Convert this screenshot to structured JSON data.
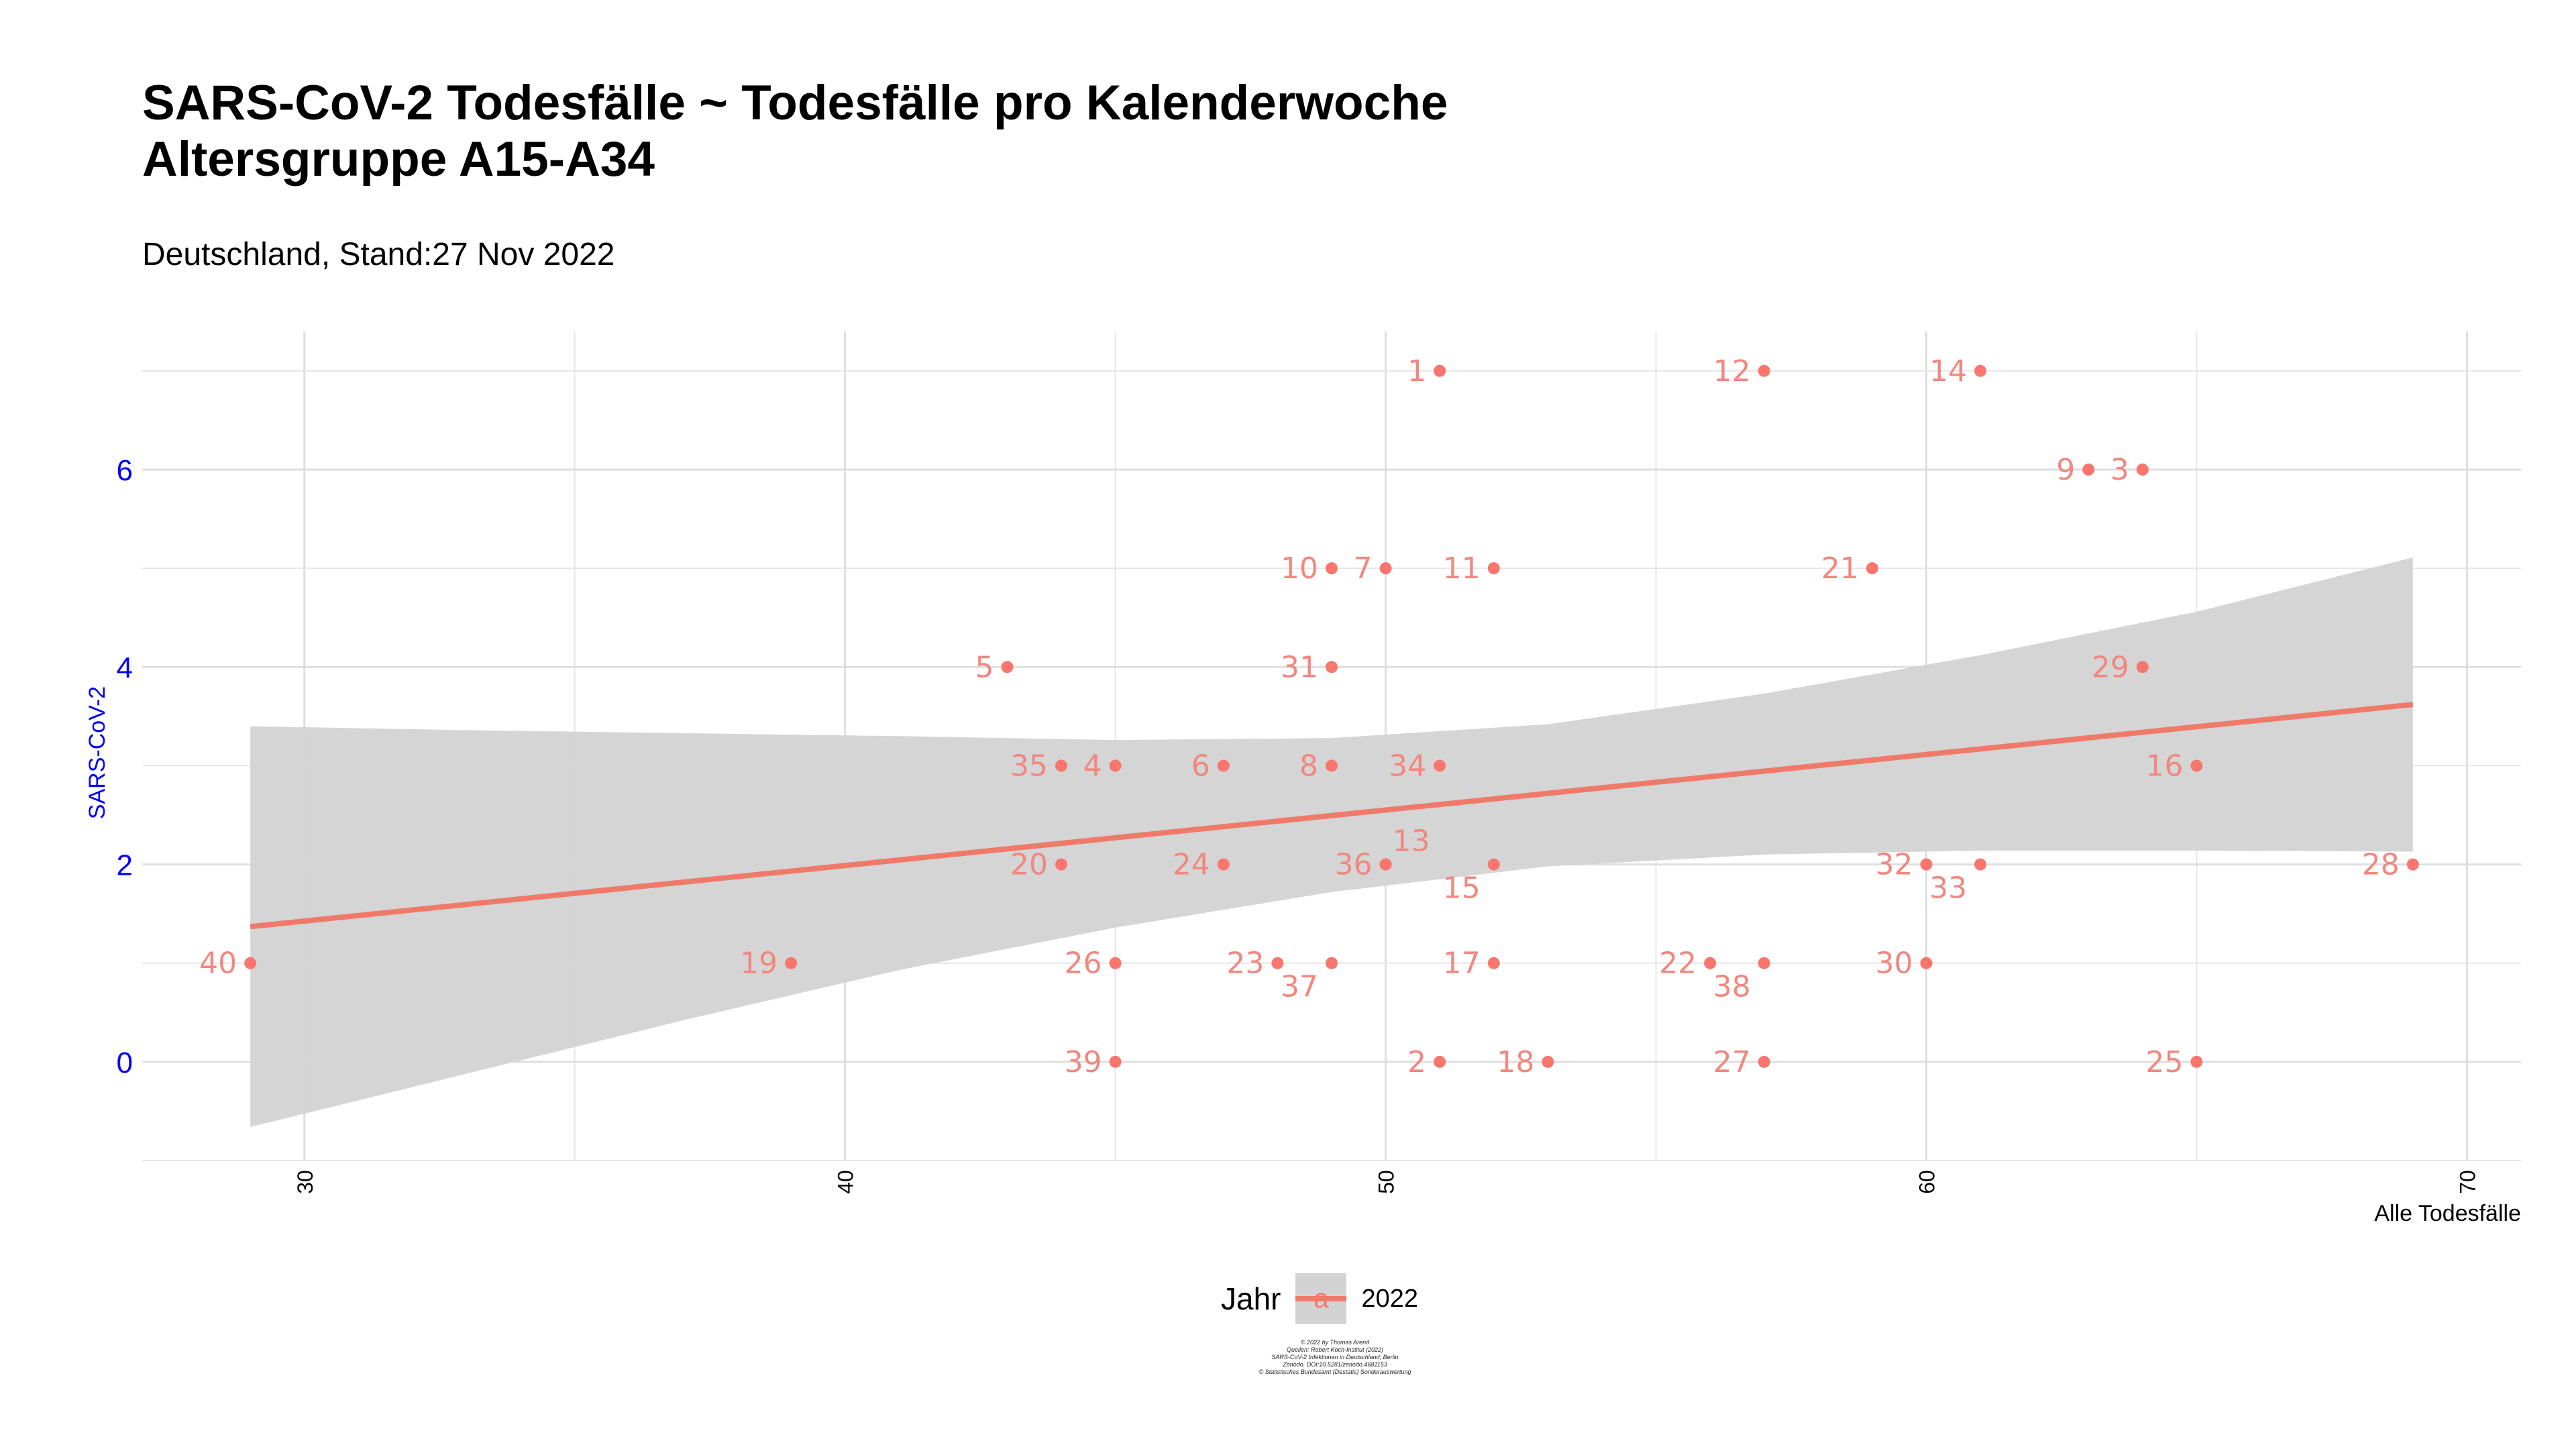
{
  "header": {
    "title_line1": "SARS-CoV-2 Todesfälle ~ Todesfälle pro Kalenderwoche",
    "title_line2": "Altersgruppe A15-A34",
    "subtitle": "Deutschland, Stand:27 Nov 2022"
  },
  "legend": {
    "title": "Jahr",
    "key_letter": "a",
    "label": "2022"
  },
  "caption": {
    "lines": [
      "© 2022 by Thomas Arend",
      "Quellen: Robert Koch-Institut (2022)",
      "SARS-CoV-2 Infektionen in Deutschland, Berlin",
      "Zenodo. DOI:10.5281/zenodo.4681153",
      "© Statistisches Bundesamt (Destatis) Sonderauswertung"
    ]
  },
  "colors": {
    "points": "#f8766d",
    "labels": "#f08880",
    "fit_line": "#f07a6a",
    "ribbon": "#d3d3d3",
    "grid": "#e6e6e6",
    "y_axis_text": "#0000ff"
  },
  "chart_data": {
    "type": "scatter",
    "xlabel": "Alle Todesfälle",
    "ylabel": "SARS-CoV-2",
    "xlim": [
      27,
      71
    ],
    "ylim": [
      -1,
      7.4
    ],
    "x_ticks": [
      30,
      40,
      50,
      60,
      70
    ],
    "y_ticks": [
      0,
      2,
      4,
      6
    ],
    "grid": true,
    "legend_position": "bottom",
    "series": [
      {
        "name": "2022",
        "points": [
          {
            "label": "1",
            "x": 51,
            "y": 7
          },
          {
            "label": "2",
            "x": 51,
            "y": 0
          },
          {
            "label": "3",
            "x": 64,
            "y": 6
          },
          {
            "label": "4",
            "x": 45,
            "y": 3
          },
          {
            "label": "5",
            "x": 43,
            "y": 4
          },
          {
            "label": "6",
            "x": 47,
            "y": 3
          },
          {
            "label": "7",
            "x": 50,
            "y": 5
          },
          {
            "label": "8",
            "x": 49,
            "y": 3
          },
          {
            "label": "9",
            "x": 63,
            "y": 6
          },
          {
            "label": "10",
            "x": 49,
            "y": 5
          },
          {
            "label": "11",
            "x": 52,
            "y": 5
          },
          {
            "label": "12",
            "x": 57,
            "y": 7
          },
          {
            "label": "13",
            "x": 50,
            "y": 2
          },
          {
            "label": "14",
            "x": 61,
            "y": 7
          },
          {
            "label": "15",
            "x": 52,
            "y": 2
          },
          {
            "label": "16",
            "x": 65,
            "y": 3
          },
          {
            "label": "17",
            "x": 52,
            "y": 1
          },
          {
            "label": "18",
            "x": 53,
            "y": 0
          },
          {
            "label": "19",
            "x": 39,
            "y": 1
          },
          {
            "label": "20",
            "x": 44,
            "y": 2
          },
          {
            "label": "21",
            "x": 59,
            "y": 5
          },
          {
            "label": "22",
            "x": 56,
            "y": 1
          },
          {
            "label": "23",
            "x": 48,
            "y": 1
          },
          {
            "label": "24",
            "x": 47,
            "y": 2
          },
          {
            "label": "25",
            "x": 65,
            "y": 0
          },
          {
            "label": "26",
            "x": 45,
            "y": 1
          },
          {
            "label": "27",
            "x": 57,
            "y": 0
          },
          {
            "label": "28",
            "x": 69,
            "y": 2
          },
          {
            "label": "29",
            "x": 64,
            "y": 4
          },
          {
            "label": "30",
            "x": 60,
            "y": 1
          },
          {
            "label": "31",
            "x": 49,
            "y": 4
          },
          {
            "label": "32",
            "x": 60,
            "y": 2
          },
          {
            "label": "33",
            "x": 61,
            "y": 2
          },
          {
            "label": "34",
            "x": 51,
            "y": 3
          },
          {
            "label": "35",
            "x": 44,
            "y": 3
          },
          {
            "label": "36",
            "x": 50,
            "y": 2
          },
          {
            "label": "37",
            "x": 49,
            "y": 1
          },
          {
            "label": "38",
            "x": 57,
            "y": 1
          },
          {
            "label": "39",
            "x": 45,
            "y": 0
          },
          {
            "label": "40",
            "x": 29,
            "y": 1
          }
        ]
      }
    ],
    "fit": {
      "method": "linear",
      "x": [
        29,
        69
      ],
      "y": [
        1.37,
        3.62
      ]
    },
    "confidence_band": {
      "x": [
        29,
        33,
        37,
        41,
        45,
        49,
        53,
        57,
        61,
        65,
        69
      ],
      "lower": [
        -0.66,
        -0.12,
        0.42,
        0.93,
        1.36,
        1.72,
        1.98,
        2.1,
        2.14,
        2.14,
        2.13
      ],
      "upper": [
        3.4,
        3.36,
        3.33,
        3.3,
        3.26,
        3.28,
        3.42,
        3.73,
        4.12,
        4.56,
        5.11
      ]
    }
  }
}
